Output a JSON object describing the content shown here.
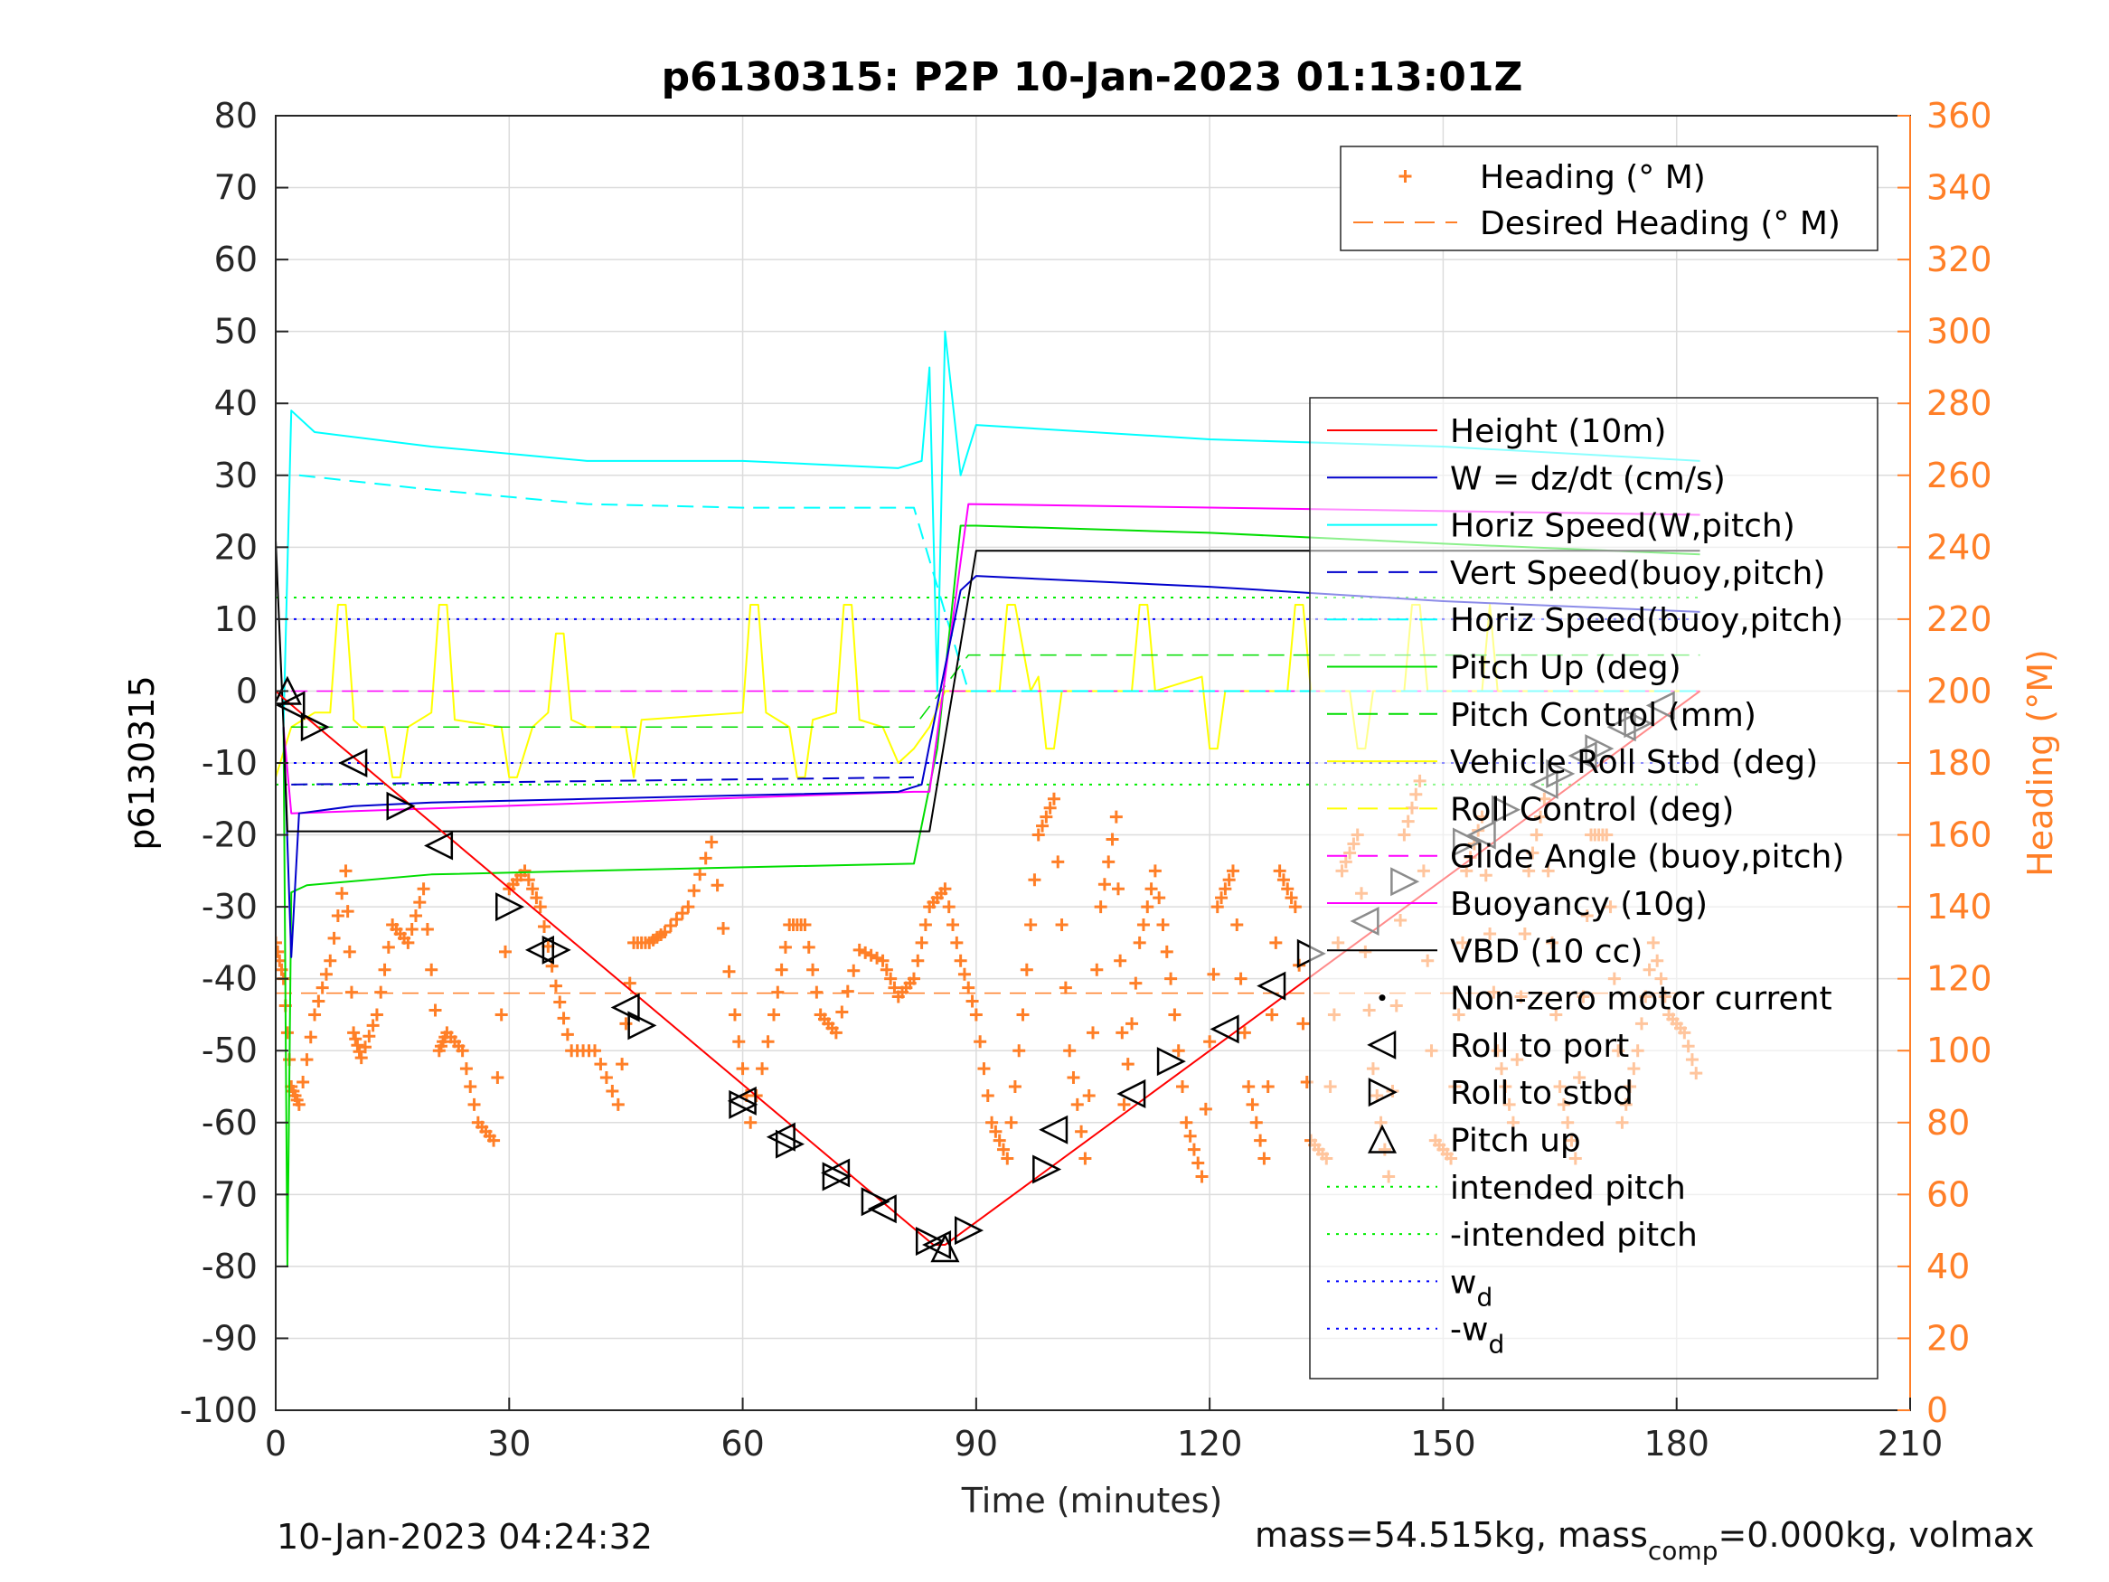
{
  "chart_data": {
    "type": "line",
    "title": "p6130315: P2P 10-Jan-2023 01:13:01Z",
    "xlabel": "Time (minutes)",
    "ylabel": "p6130315",
    "y2label": "Heading (°M)",
    "xlim": [
      0,
      210
    ],
    "ylim": [
      -100,
      80
    ],
    "y2lim": [
      0,
      360
    ],
    "xticks": [
      "0",
      "30",
      "60",
      "90",
      "120",
      "150",
      "180",
      "210"
    ],
    "yticks": [
      "80",
      "70",
      "60",
      "50",
      "40",
      "30",
      "20",
      "10",
      "0",
      "-10",
      "-20",
      "-30",
      "-40",
      "-50",
      "-60",
      "-70",
      "-80",
      "-90",
      "-100"
    ],
    "y2ticks": [
      "360",
      "340",
      "320",
      "300",
      "280",
      "260",
      "240",
      "220",
      "200",
      "180",
      "160",
      "140",
      "120",
      "100",
      "80",
      "60",
      "40",
      "20",
      "0"
    ],
    "grid": true,
    "legend_heading": [
      {
        "label": "Heading (° M)",
        "color": "#ff7f27",
        "style": "plus"
      },
      {
        "label": "Desired Heading (° M)",
        "color": "#ff7f27",
        "style": "dashed"
      }
    ],
    "legend_main": [
      {
        "label": "Height (10m)",
        "color": "#ff0000",
        "style": "solid"
      },
      {
        "label": "W = dz/dt (cm/s)",
        "color": "#0000cc",
        "style": "solid"
      },
      {
        "label": "Horiz Speed(W,pitch)",
        "color": "#00ffff",
        "style": "solid"
      },
      {
        "label": "Vert Speed(buoy,pitch)",
        "color": "#0000cc",
        "style": "dashed"
      },
      {
        "label": "Horiz Speed(buoy,pitch)",
        "color": "#00ffff",
        "style": "dashed"
      },
      {
        "label": "Pitch Up (deg)",
        "color": "#00dd00",
        "style": "solid"
      },
      {
        "label": "Pitch Control (mm)",
        "color": "#00dd00",
        "style": "dashed"
      },
      {
        "label": "Vehicle Roll Stbd (deg)",
        "color": "#ffff00",
        "style": "solid"
      },
      {
        "label": "Roll Control (deg)",
        "color": "#ffff00",
        "style": "dashed"
      },
      {
        "label": "Glide Angle (buoy,pitch)",
        "color": "#ff00ff",
        "style": "dashed"
      },
      {
        "label": "Buoyancy (10g)",
        "color": "#ff00ff",
        "style": "solid"
      },
      {
        "label": "VBD (10 cc)",
        "color": "#000000",
        "style": "solid"
      },
      {
        "label": "Non-zero motor current",
        "color": "#000000",
        "style": "dot"
      },
      {
        "label": "Roll to port",
        "color": "#000000",
        "style": "tri-left"
      },
      {
        "label": "Roll to stbd",
        "color": "#000000",
        "style": "tri-right"
      },
      {
        "label": "Pitch up",
        "color": "#000000",
        "style": "tri-up"
      },
      {
        "label": "intended pitch",
        "color": "#00ee00",
        "style": "dotted"
      },
      {
        "label": "-intended pitch",
        "color": "#00ee00",
        "style": "dotted"
      },
      {
        "label": "w",
        "sub": "d",
        "color": "#0000ff",
        "style": "dotted"
      },
      {
        "label": "-w",
        "sub": "d",
        "color": "#0000ff",
        "style": "dotted"
      }
    ],
    "series": {
      "height": {
        "x": [
          0,
          1,
          84.5,
          86,
          183
        ],
        "y": [
          0,
          -1,
          -77,
          -77,
          0
        ]
      },
      "vbd": {
        "x": [
          0,
          1,
          1.5,
          82.5,
          84,
          90,
          183
        ],
        "y": [
          21,
          -5,
          -19.5,
          -19.5,
          -19.5,
          19.5,
          19.5
        ]
      },
      "buoyancy": {
        "x": [
          1,
          2,
          82,
          84,
          89,
          183
        ],
        "y": [
          -5,
          -17,
          -14,
          -14,
          26,
          24.5
        ]
      },
      "w": {
        "x": [
          1,
          2,
          3,
          10,
          20,
          40,
          60,
          80,
          83,
          85,
          88,
          90,
          120,
          150,
          183
        ],
        "y": [
          -5,
          -37,
          -17,
          -16,
          -15.5,
          -15,
          -14.5,
          -14,
          -13,
          -2,
          14,
          16,
          14.5,
          12.5,
          11
        ]
      },
      "vert_speed_buoy": {
        "x": [
          2,
          82
        ],
        "y": [
          -13,
          -12
        ]
      },
      "horiz_speed_w": {
        "x": [
          1,
          2,
          5,
          20,
          40,
          60,
          80,
          83,
          84,
          85,
          86,
          88,
          90,
          120,
          150,
          183
        ],
        "y": [
          -5,
          39,
          36,
          34,
          32,
          32,
          31,
          32,
          45,
          0,
          50,
          30,
          37,
          35,
          34,
          32
        ]
      },
      "horiz_speed_buoy": {
        "x": [
          3,
          20,
          40,
          60,
          82,
          89,
          120,
          150,
          183
        ],
        "y": [
          30,
          28,
          26,
          25.5,
          25.5,
          0,
          0,
          0,
          0
        ]
      },
      "pitch_up": {
        "x": [
          1,
          1.5,
          2,
          4,
          20,
          60,
          82,
          85,
          88,
          90,
          120,
          150,
          183
        ],
        "y": [
          -5,
          -80,
          -28,
          -27,
          -25.5,
          -24.5,
          -24,
          -8,
          23,
          23,
          22,
          20.5,
          19
        ]
      },
      "pitch_control": {
        "x": [
          2,
          82,
          89,
          183
        ],
        "y": [
          -5,
          -5,
          5,
          5
        ]
      },
      "glide_angle": {
        "x": [
          2,
          183
        ],
        "y": [
          0,
          0
        ]
      },
      "intended_pitch": {
        "x": [
          0,
          183
        ],
        "y": [
          13,
          13
        ]
      },
      "neg_intended_pitch": {
        "x": [
          0,
          183
        ],
        "y": [
          -13,
          -13
        ]
      },
      "w_d": {
        "x": [
          0,
          183
        ],
        "y": [
          10,
          10
        ]
      },
      "neg_w_d": {
        "x": [
          0,
          183
        ],
        "y": [
          -10,
          -10
        ]
      },
      "desired_heading": {
        "x": [
          0,
          183
        ],
        "y": [
          116,
          116
        ]
      },
      "heading": {
        "x": [
          0,
          1,
          2,
          3,
          5,
          7,
          9,
          10,
          11,
          13,
          15,
          17,
          19,
          21,
          22,
          24,
          26,
          28,
          30,
          32,
          34,
          36,
          38,
          41,
          44,
          46,
          48,
          50,
          53,
          56,
          59,
          61,
          64,
          66,
          68,
          70,
          72,
          75,
          78,
          80,
          82,
          84,
          86,
          88,
          90,
          92,
          94,
          96,
          98,
          100,
          102,
          104,
          106,
          108,
          109,
          111,
          113,
          115,
          117,
          119,
          121,
          123,
          125,
          127,
          129,
          131,
          133,
          135,
          137,
          139,
          141,
          143,
          145,
          147,
          149,
          151,
          153,
          155,
          157,
          159,
          161,
          163,
          165,
          167,
          169,
          171,
          173,
          175,
          177,
          179,
          181,
          183
        ],
        "y": [
          130,
          120,
          90,
          85,
          110,
          125,
          150,
          105,
          98,
          110,
          135,
          130,
          145,
          100,
          105,
          100,
          80,
          75,
          145,
          150,
          140,
          118,
          100,
          100,
          85,
          130,
          130,
          133,
          140,
          158,
          110,
          80,
          110,
          135,
          135,
          110,
          105,
          128,
          125,
          115,
          120,
          140,
          145,
          125,
          110,
          80,
          70,
          110,
          160,
          170,
          100,
          70,
          140,
          165,
          85,
          130,
          150,
          120,
          80,
          65,
          140,
          150,
          90,
          70,
          150,
          140,
          75,
          70,
          150,
          160,
          95,
          65,
          160,
          175,
          75,
          70,
          150,
          165,
          100,
          80,
          150,
          170,
          90,
          70,
          160,
          160,
          80,
          100,
          130,
          110,
          105,
          90
        ]
      },
      "roll_vehicle": {
        "x": [
          0,
          2,
          5,
          7,
          8,
          9,
          10,
          10,
          11,
          14,
          15,
          16,
          17,
          20,
          21,
          22,
          23,
          29,
          30,
          31,
          33,
          35,
          36,
          37,
          38,
          40,
          45,
          46,
          47,
          60,
          61,
          62,
          63,
          66,
          67,
          68,
          69,
          72,
          73,
          74,
          75,
          78,
          80,
          82,
          84,
          86,
          88,
          93,
          94,
          95,
          97,
          98,
          99,
          100,
          101,
          110,
          111,
          112,
          113,
          119,
          120,
          121,
          122,
          130,
          131,
          132,
          133,
          138,
          139,
          140,
          141,
          145,
          146,
          147,
          148,
          150,
          155,
          156,
          157,
          160,
          170,
          175,
          180,
          183
        ],
        "y": [
          -12,
          -5,
          -3,
          -3,
          12,
          12,
          -3,
          -4,
          -5,
          -5,
          -12,
          -12,
          -5,
          -3,
          12,
          12,
          -4,
          -5,
          -12,
          -12,
          -5,
          -3,
          8,
          8,
          -4,
          -5,
          -5,
          -12,
          -4,
          -3,
          12,
          12,
          -3,
          -5,
          -12,
          -12,
          -4,
          -3,
          12,
          12,
          -4,
          -5,
          -10,
          -8,
          -5,
          0,
          0,
          0,
          12,
          12,
          0,
          2,
          -8,
          -8,
          0,
          0,
          12,
          12,
          0,
          2,
          -8,
          -8,
          0,
          0,
          12,
          12,
          0,
          0,
          -8,
          -8,
          0,
          0,
          12,
          12,
          0,
          0,
          0,
          12,
          0,
          0,
          0,
          0,
          0,
          0
        ]
      },
      "roll_to_port": {
        "x": [
          2,
          10,
          21,
          34,
          45,
          60,
          65,
          72,
          78,
          85,
          100,
          110,
          122,
          128,
          140,
          155,
          163,
          168,
          173,
          178
        ],
        "y": [
          -2,
          -10,
          -21.5,
          -36,
          -44,
          -57,
          -62,
          -67,
          -72,
          -77,
          -61,
          -56,
          -47,
          -41,
          -32,
          -20,
          -13,
          -9,
          -5,
          -2
        ]
      },
      "roll_to_stbd": {
        "x": [
          5,
          16,
          30,
          36,
          47,
          60,
          66,
          72,
          77,
          84,
          89,
          99,
          115,
          133,
          145,
          153,
          158,
          165,
          170,
          175
        ],
        "y": [
          -5,
          -16,
          -30,
          -36,
          -46.5,
          -57.5,
          -63,
          -67.5,
          -71,
          -76.5,
          -75,
          -66.5,
          -51.5,
          -36.5,
          -26.5,
          -21,
          -16.5,
          -11.5,
          -8,
          -4.5
        ]
      },
      "pitch_up_markers": {
        "x": [
          1.5,
          86
        ],
        "y": [
          0,
          -77.5
        ]
      }
    }
  },
  "footer": {
    "timestamp": "10-Jan-2023 04:24:32",
    "mass_prefix": "mass=54.515kg, mass",
    "mass_sub": "comp",
    "mass_suffix": "=0.000kg, volmax"
  }
}
